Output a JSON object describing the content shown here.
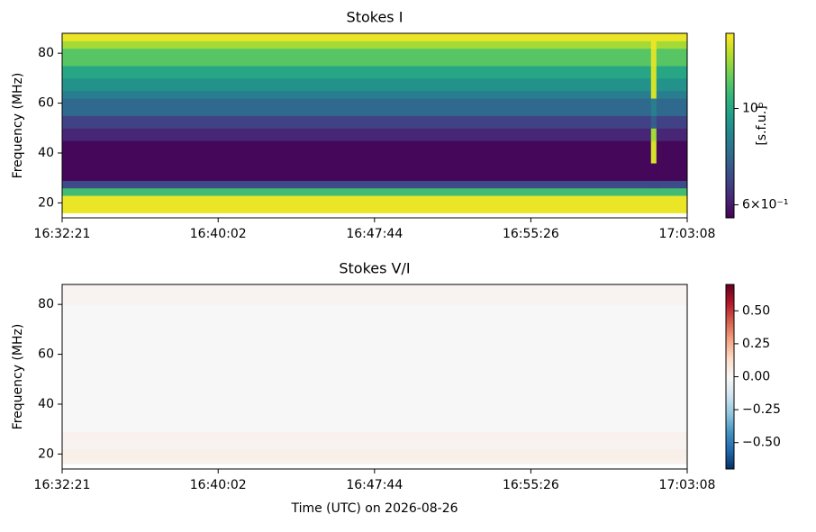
{
  "chart_data": [
    {
      "type": "heatmap",
      "title": "Stokes I",
      "ylabel": "Frequency (MHz)",
      "xlim": [
        0,
        1847
      ],
      "xticks": [
        {
          "value": 0,
          "label": "16:32:21"
        },
        {
          "value": 461,
          "label": "16:40:02"
        },
        {
          "value": 923,
          "label": "16:47:44"
        },
        {
          "value": 1385,
          "label": "16:55:26"
        },
        {
          "value": 1847,
          "label": "17:03:08"
        }
      ],
      "ylim": [
        14,
        88
      ],
      "yticks": [
        20,
        40,
        60,
        80
      ],
      "x_bins": [
        0,
        1740,
        1756,
        1847
      ],
      "y_bins": [
        14,
        16,
        23,
        26,
        29,
        36,
        45,
        50,
        55,
        62,
        65,
        70,
        75,
        82,
        85,
        88
      ],
      "values": [
        [
          null,
          null,
          null
        ],
        [
          1.45,
          1.45,
          1.45
        ],
        [
          1.1,
          1.1,
          1.1
        ],
        [
          0.7,
          0.7,
          0.7
        ],
        [
          0.57,
          0.57,
          0.57
        ],
        [
          0.57,
          1.4,
          0.57
        ],
        [
          0.62,
          1.3,
          0.62
        ],
        [
          0.68,
          0.75,
          0.68
        ],
        [
          0.78,
          0.85,
          0.78
        ],
        [
          0.85,
          1.4,
          0.85
        ],
        [
          0.92,
          1.4,
          0.92
        ],
        [
          1.0,
          1.4,
          1.0
        ],
        [
          1.15,
          1.42,
          1.15
        ],
        [
          1.3,
          1.45,
          1.3
        ],
        [
          1.45,
          1.45,
          1.45
        ]
      ],
      "colormap": "viridis",
      "color_scale": "log",
      "clim": [
        0.56,
        1.49
      ],
      "cticks": [
        {
          "value": 1,
          "label": "10⁰"
        },
        {
          "value": 0.6,
          "label": "6×10⁻¹"
        }
      ],
      "clabel": "[s.f.u.]"
    },
    {
      "type": "heatmap",
      "title": "Stokes V/I",
      "ylabel": "Frequency (MHz)",
      "xlabel": "Time (UTC) on 2026-08-26",
      "xlim": [
        0,
        1847
      ],
      "xticks": [
        {
          "value": 0,
          "label": "16:32:21"
        },
        {
          "value": 461,
          "label": "16:40:02"
        },
        {
          "value": 923,
          "label": "16:47:44"
        },
        {
          "value": 1385,
          "label": "16:55:26"
        },
        {
          "value": 1847,
          "label": "17:03:08"
        }
      ],
      "ylim": [
        14,
        88
      ],
      "yticks": [
        20,
        40,
        60,
        80
      ],
      "x_bins": [
        0,
        1847
      ],
      "y_bins": [
        14,
        16,
        18,
        22,
        26,
        29,
        80,
        88
      ],
      "values": [
        [
          null
        ],
        [
          0.03
        ],
        [
          0.04
        ],
        [
          0.02
        ],
        [
          0.03
        ],
        [
          0.0
        ],
        [
          0.02
        ]
      ],
      "colormap": "RdBu_r",
      "color_scale": "linear",
      "clim": [
        -0.7,
        0.7
      ],
      "cticks": [
        {
          "value": 0.5,
          "label": "0.50"
        },
        {
          "value": 0.25,
          "label": "0.25"
        },
        {
          "value": 0,
          "label": "0.00"
        },
        {
          "value": -0.25,
          "label": "−0.25"
        },
        {
          "value": -0.5,
          "label": "−0.50"
        }
      ]
    }
  ]
}
